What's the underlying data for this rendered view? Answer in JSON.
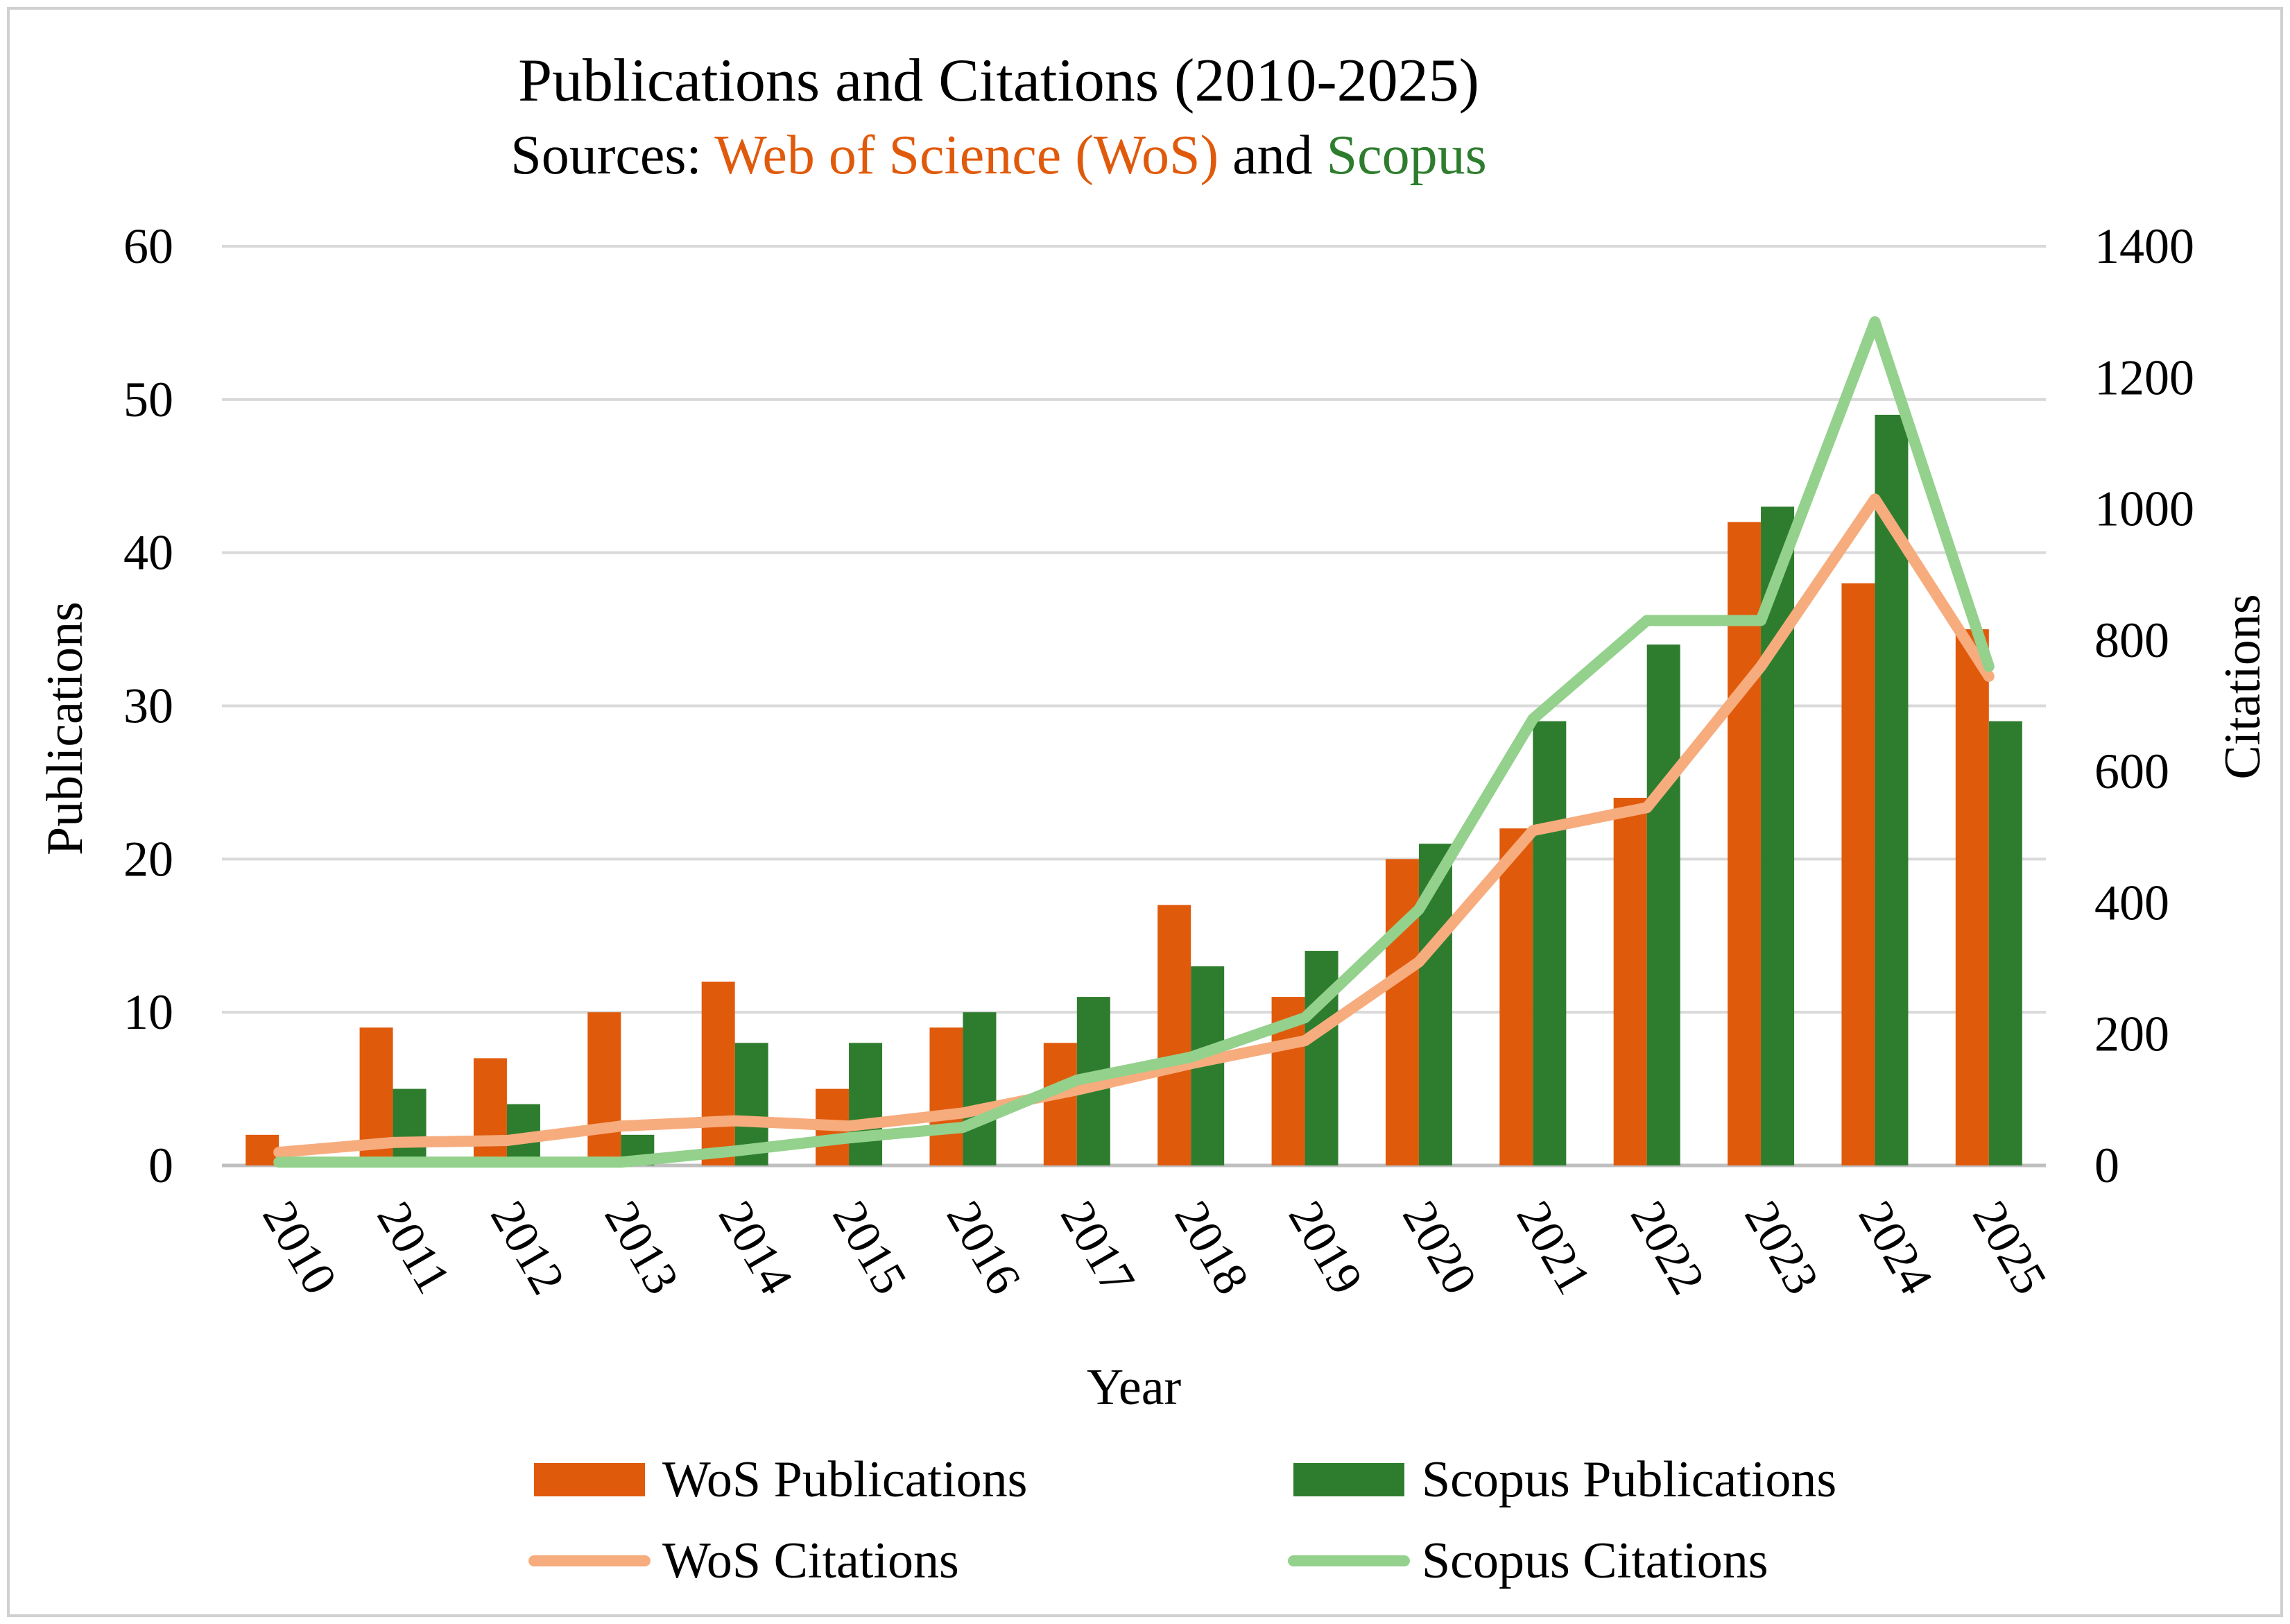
{
  "chart_data": {
    "type": "bar",
    "title": "Publications and Citations (2010-2025)",
    "subtitle": {
      "prefix": "Sources: ",
      "wos": "Web of Science (WoS)",
      "middle": " and ",
      "scopus": "Scopus"
    },
    "xlabel": "Year",
    "ylabel": "Publications",
    "y2label": "Citations",
    "ylim": [
      0,
      60
    ],
    "y2lim": [
      0,
      1400
    ],
    "yticks": [
      0,
      10,
      20,
      30,
      40,
      50,
      60
    ],
    "y2ticks": [
      0,
      200,
      400,
      600,
      800,
      1000,
      1200,
      1400
    ],
    "grid": true,
    "legend_position": "bottom",
    "categories": [
      "2010",
      "2011",
      "2012",
      "2013",
      "2014",
      "2015",
      "2016",
      "2017",
      "2018",
      "2019",
      "2020",
      "2021",
      "2022",
      "2023",
      "2024",
      "2025"
    ],
    "series": [
      {
        "name": "WoS Publications",
        "kind": "bar",
        "axis": "left",
        "color": "#E05A0C",
        "values": [
          2,
          9,
          7,
          10,
          12,
          5,
          9,
          8,
          17,
          11,
          20,
          22,
          24,
          42,
          38,
          35
        ]
      },
      {
        "name": "Scopus Publications",
        "kind": "bar",
        "axis": "left",
        "color": "#2E7D2E",
        "values": [
          0,
          5,
          4,
          2,
          8,
          8,
          10,
          11,
          13,
          14,
          21,
          29,
          34,
          43,
          49,
          29
        ]
      },
      {
        "name": "WoS Citations",
        "kind": "line",
        "axis": "right",
        "color": "#F7AC7E",
        "values": [
          20,
          35,
          38,
          60,
          68,
          60,
          80,
          115,
          155,
          190,
          310,
          510,
          545,
          760,
          1015,
          745
        ]
      },
      {
        "name": "Scopus Citations",
        "kind": "line",
        "axis": "right",
        "color": "#93D18C",
        "values": [
          5,
          5,
          5,
          5,
          22,
          42,
          58,
          130,
          165,
          225,
          390,
          680,
          830,
          830,
          1285,
          760
        ]
      }
    ]
  }
}
